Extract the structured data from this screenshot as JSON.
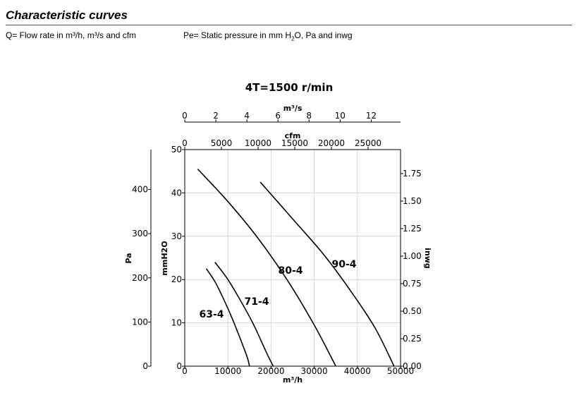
{
  "header": {
    "title": "Characteristic curves",
    "q_legend": "Q= Flow rate in m³/h, m³/s and cfm",
    "pe_legend_prefix": "Pe= Static pressure in mm H",
    "pe_legend_sub": "2",
    "pe_legend_suffix": "O, Pa and inwg"
  },
  "chart_data": {
    "type": "line",
    "title": "4T=1500 r/min",
    "grid": true,
    "x_bottom": {
      "label": "m³/h",
      "range": [
        0,
        50000
      ],
      "ticks": [
        0,
        10000,
        20000,
        30000,
        40000,
        50000
      ]
    },
    "x_top_m3s": {
      "label": "m³/s",
      "range": [
        0,
        13.889
      ],
      "ticks": [
        0,
        2,
        4,
        6,
        8,
        10,
        12
      ]
    },
    "x_top_cfm": {
      "label": "cfm",
      "range": [
        0,
        29429
      ],
      "ticks": [
        0,
        5000,
        10000,
        15000,
        20000,
        25000
      ]
    },
    "y_left_mmh2o": {
      "label": "mmH2O",
      "range": [
        0,
        50
      ],
      "ticks": [
        0,
        10,
        20,
        30,
        40,
        50
      ]
    },
    "y_left_pa": {
      "label": "Pa",
      "range": [
        0,
        490.3
      ],
      "ticks": [
        0,
        100,
        200,
        300,
        400
      ]
    },
    "y_right_inwg": {
      "label": "inwg",
      "range": [
        0,
        1.968
      ],
      "ticks": [
        "0.00",
        "0.25",
        "0.50",
        "0.75",
        "1.00",
        "1.25",
        "1.50",
        "1.75"
      ]
    },
    "series": [
      {
        "name": "63-4",
        "x": [
          5000,
          7000,
          9000,
          11000,
          13000,
          14500,
          15000
        ],
        "y": [
          22.5,
          19.5,
          15.5,
          11,
          6,
          2,
          0
        ]
      },
      {
        "name": "71-4",
        "x": [
          7000,
          10000,
          13000,
          16000,
          19000,
          20500
        ],
        "y": [
          24,
          20,
          15,
          9.5,
          3,
          0
        ]
      },
      {
        "name": "80-4",
        "x": [
          3000,
          10000,
          17000,
          24000,
          30000,
          35000
        ],
        "y": [
          45.5,
          38,
          29.5,
          19.5,
          9.5,
          0
        ]
      },
      {
        "name": "90-4",
        "x": [
          17500,
          25000,
          32000,
          38000,
          44000,
          48500
        ],
        "y": [
          42.5,
          34,
          26,
          18,
          9,
          0
        ]
      }
    ]
  }
}
